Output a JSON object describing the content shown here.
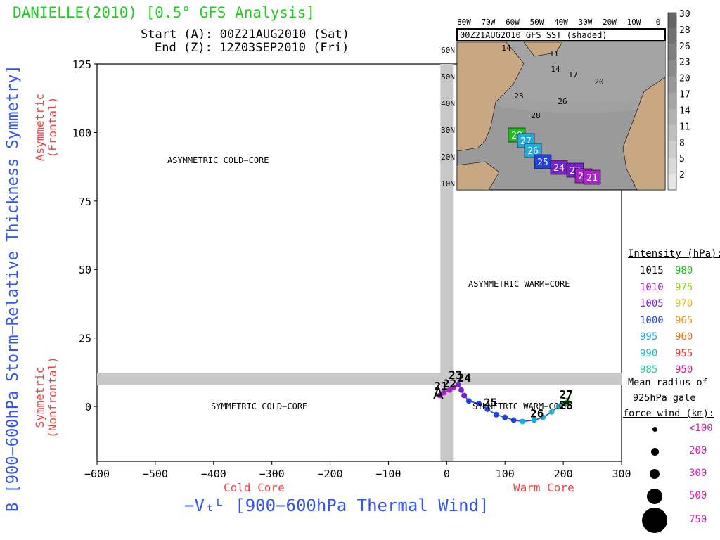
{
  "header": {
    "title": "DANIELLE(2010) [0.5° GFS Analysis]",
    "start": "Start (A): 00Z21AUG2010 (Sat)",
    "end": "End (Z): 12Z03SEP2010 (Fri)"
  },
  "axes": {
    "xlabel": "−Vₜᴸ [900−600hPa Thermal Wind]",
    "ylabel": "B [900−600hPa Storm−Relative Thickness Symmetry]",
    "x_left_sub": "Cold Core",
    "x_right_sub": "Warm Core",
    "y_top_sub_1": "Asymmetric",
    "y_top_sub_2": "(Frontal)",
    "y_bottom_sub_1": "Symmetric",
    "y_bottom_sub_2": "(Nonfrontal)"
  },
  "regions": {
    "asym_cold": "ASYMMETRIC COLD−CORE",
    "asym_warm": "ASYMMETRIC WARM−CORE",
    "sym_cold": "SYMMETRIC COLD−CORE",
    "sym_warm": "SYMMETRIC WARM−CORE"
  },
  "legend": {
    "title": "Intensity (hPa):",
    "rows": [
      {
        "left": "1015",
        "left_color": "#000000",
        "right": "980",
        "right_color": "#22bb22"
      },
      {
        "left": "1010",
        "left_color": "#aa22cc",
        "right": "975",
        "right_color": "#99cc22"
      },
      {
        "left": "1005",
        "left_color": "#7722cc",
        "right": "970",
        "right_color": "#ddbb22"
      },
      {
        "left": "1000",
        "left_color": "#2244dd",
        "right": "965",
        "right_color": "#dd9922"
      },
      {
        "left": "995",
        "left_color": "#22aadd",
        "right": "960",
        "right_color": "#dd7722"
      },
      {
        "left": "990",
        "left_color": "#22bbbb",
        "right": "955",
        "right_color": "#dd3333"
      },
      {
        "left": "985",
        "left_color": "#22ccaa",
        "right": "950",
        "right_color": "#cc2299"
      }
    ],
    "note_1": "Mean radius of",
    "note_2": "925hPa gale",
    "note_3": "force wind (km):",
    "radii": [
      "<100",
      "200",
      "300",
      "500",
      "750"
    ]
  },
  "inset": {
    "title": "00Z21AUG2010 GFS SST (shaded)",
    "lon_labels": [
      "80W",
      "70W",
      "60W",
      "50W",
      "40W",
      "30W",
      "20W",
      "10W",
      "0"
    ],
    "lat_labels": [
      "60N",
      "50N",
      "40N",
      "30N",
      "20N",
      "10N"
    ],
    "colorbar_labels": [
      "30",
      "28",
      "26",
      "23",
      "20",
      "17",
      "14",
      "11",
      "8",
      "5",
      "2"
    ],
    "contour_labels": [
      "14",
      "11",
      "14",
      "17",
      "20",
      "26",
      "28",
      "23"
    ],
    "track_boxes": [
      {
        "label": "28",
        "color": "#22bb22"
      },
      {
        "label": "27",
        "color": "#22aadd"
      },
      {
        "label": "26",
        "color": "#22aadd"
      },
      {
        "label": "25",
        "color": "#2244dd"
      },
      {
        "label": "24",
        "color": "#7722cc"
      },
      {
        "label": "23",
        "color": "#7722cc"
      },
      {
        "label": "22",
        "color": "#aa22cc"
      },
      {
        "label": "21",
        "color": "#aa22cc"
      }
    ]
  },
  "chart_data": {
    "type": "scatter",
    "title": "DANIELLE(2010) [0.5° GFS Analysis]",
    "xlabel": "−Vt [900−600hPa Thermal Wind]",
    "ylabel": "B [900−600hPa Storm−Relative Thickness Symmetry]",
    "xlim": [
      -600,
      300
    ],
    "ylim": [
      -20,
      125
    ],
    "xticks": [
      -600,
      -500,
      -400,
      -300,
      -200,
      -100,
      0,
      100,
      200,
      300
    ],
    "yticks": [
      0,
      25,
      50,
      75,
      100,
      125
    ],
    "threshold_x": 0,
    "threshold_y": 10,
    "track": [
      {
        "x": -12,
        "y": 4,
        "color": "#aa22cc"
      },
      {
        "x": -5,
        "y": 5,
        "color": "#aa22cc"
      },
      {
        "x": 5,
        "y": 6,
        "color": "#aa22cc"
      },
      {
        "x": 12,
        "y": 7,
        "color": "#aa22cc"
      },
      {
        "x": 20,
        "y": 8,
        "color": "#7722cc"
      },
      {
        "x": 25,
        "y": 6,
        "color": "#7722cc"
      },
      {
        "x": 30,
        "y": 4,
        "color": "#7722cc"
      },
      {
        "x": 38,
        "y": 2,
        "color": "#2244dd"
      },
      {
        "x": 55,
        "y": 1,
        "color": "#2244dd"
      },
      {
        "x": 70,
        "y": -1,
        "color": "#2244dd"
      },
      {
        "x": 85,
        "y": -3,
        "color": "#2244dd"
      },
      {
        "x": 100,
        "y": -4,
        "color": "#2244dd"
      },
      {
        "x": 115,
        "y": -5,
        "color": "#2244dd"
      },
      {
        "x": 130,
        "y": -5.5,
        "color": "#22aadd"
      },
      {
        "x": 150,
        "y": -5,
        "color": "#22aadd"
      },
      {
        "x": 165,
        "y": -4,
        "color": "#22aadd"
      },
      {
        "x": 180,
        "y": -2,
        "color": "#22bbbb"
      },
      {
        "x": 192,
        "y": 0,
        "color": "#22bbbb"
      },
      {
        "x": 200,
        "y": 1,
        "color": "#22ccaa"
      },
      {
        "x": 207,
        "y": 1.5,
        "color": "#22bb22"
      }
    ],
    "day_labels": [
      {
        "text": "21",
        "x": -10,
        "y": 6
      },
      {
        "text": "22",
        "x": 5,
        "y": 7
      },
      {
        "text": "23",
        "x": 15,
        "y": 10
      },
      {
        "text": "24",
        "x": 30,
        "y": 9
      },
      {
        "text": "25",
        "x": 75,
        "y": 0
      },
      {
        "text": "26",
        "x": 155,
        "y": -4
      },
      {
        "text": "27",
        "x": 205,
        "y": 3
      },
      {
        "text": "28",
        "x": 205,
        "y": -1
      }
    ],
    "start_marker": "A",
    "end_marker": "Z"
  }
}
